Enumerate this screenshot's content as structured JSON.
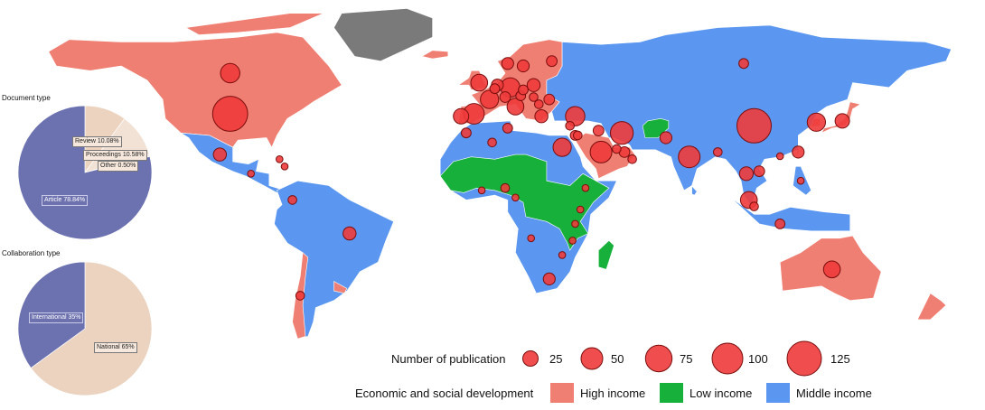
{
  "colors": {
    "high_income": "#f07f73",
    "low_income": "#16b03a",
    "middle_income": "#5b97f0",
    "no_data": "#7a7a7a",
    "bubble": "#ee3b3b",
    "article": "#6c72b0",
    "review": "#ebd3c0",
    "proceedings": "#f2e1d5",
    "other": "#f7ece4",
    "international": "#6c72b0",
    "national": "#ebd3c0"
  },
  "document_type": {
    "title": "Document type",
    "slices": [
      {
        "label": "Review 10.08%",
        "value": 10.08,
        "key": "review"
      },
      {
        "label": "Proceedings 10.58%",
        "value": 10.58,
        "key": "proceedings"
      },
      {
        "label": "Other 0.50%",
        "value": 0.5,
        "key": "other"
      },
      {
        "label": "Article 78.84%",
        "value": 78.84,
        "key": "article"
      }
    ]
  },
  "collaboration_type": {
    "title": "Collaboration type",
    "slices": [
      {
        "label": "National 65%",
        "value": 65,
        "key": "national"
      },
      {
        "label": "International 35%",
        "value": 35,
        "key": "international"
      }
    ]
  },
  "legend": {
    "publication_title": "Number of publication",
    "sizes": [
      {
        "label": "25",
        "value": 25
      },
      {
        "label": "50",
        "value": 50
      },
      {
        "label": "75",
        "value": 75
      },
      {
        "label": "100",
        "value": 100
      },
      {
        "label": "125",
        "value": 125
      }
    ],
    "development_title": "Economic and social development",
    "categories": [
      {
        "label": "High income",
        "key": "high_income"
      },
      {
        "label": "Low income",
        "key": "low_income"
      },
      {
        "label": "Middle income",
        "key": "middle_income"
      }
    ]
  },
  "bubbles": [
    {
      "name": "usa",
      "lon": -98,
      "lat": 40,
      "value": 130
    },
    {
      "name": "canada",
      "lon": -98,
      "lat": 57,
      "value": 40
    },
    {
      "name": "mexico",
      "lon": -102,
      "lat": 23,
      "value": 18
    },
    {
      "name": "guatemala",
      "lon": -90,
      "lat": 15,
      "value": 5
    },
    {
      "name": "cuba",
      "lon": -79,
      "lat": 21,
      "value": 5
    },
    {
      "name": "jamaica",
      "lon": -77,
      "lat": 18,
      "value": 5
    },
    {
      "name": "colombia",
      "lon": -74,
      "lat": 4,
      "value": 8
    },
    {
      "name": "brazil",
      "lon": -52,
      "lat": -10,
      "value": 18
    },
    {
      "name": "chile",
      "lon": -71,
      "lat": -36,
      "value": 8
    },
    {
      "name": "uk",
      "lon": -2,
      "lat": 53,
      "value": 30
    },
    {
      "name": "spain",
      "lon": -4,
      "lat": 40,
      "value": 45
    },
    {
      "name": "portugal",
      "lon": -9,
      "lat": 39,
      "value": 25
    },
    {
      "name": "france",
      "lon": 2,
      "lat": 46,
      "value": 35
    },
    {
      "name": "germany",
      "lon": 10,
      "lat": 51,
      "value": 40
    },
    {
      "name": "italy",
      "lon": 12,
      "lat": 43,
      "value": 30
    },
    {
      "name": "norway",
      "lon": 9,
      "lat": 61,
      "value": 15
    },
    {
      "name": "sweden",
      "lon": 15,
      "lat": 60,
      "value": 15
    },
    {
      "name": "finland",
      "lon": 26,
      "lat": 62,
      "value": 12
    },
    {
      "name": "netherlands",
      "lon": 5,
      "lat": 52,
      "value": 15
    },
    {
      "name": "belgium",
      "lon": 4,
      "lat": 50.5,
      "value": 10
    },
    {
      "name": "switzerland",
      "lon": 8,
      "lat": 47,
      "value": 12
    },
    {
      "name": "poland",
      "lon": 19,
      "lat": 52,
      "value": 18
    },
    {
      "name": "austria",
      "lon": 14,
      "lat": 47.5,
      "value": 10
    },
    {
      "name": "czech",
      "lon": 15,
      "lat": 50,
      "value": 10
    },
    {
      "name": "greece",
      "lon": 22,
      "lat": 39,
      "value": 18
    },
    {
      "name": "romania",
      "lon": 25,
      "lat": 46,
      "value": 12
    },
    {
      "name": "hungary",
      "lon": 19,
      "lat": 47,
      "value": 8
    },
    {
      "name": "serbia",
      "lon": 21,
      "lat": 44,
      "value": 8
    },
    {
      "name": "turkey",
      "lon": 35,
      "lat": 39,
      "value": 40
    },
    {
      "name": "cyprus",
      "lon": 33,
      "lat": 35,
      "value": 8
    },
    {
      "name": "israel",
      "lon": 35,
      "lat": 31,
      "value": 10
    },
    {
      "name": "egypt",
      "lon": 30,
      "lat": 26,
      "value": 35
    },
    {
      "name": "saudi",
      "lon": 45,
      "lat": 24,
      "value": 50
    },
    {
      "name": "iran",
      "lon": 53,
      "lat": 32,
      "value": 55
    },
    {
      "name": "iraq",
      "lon": 44,
      "lat": 33,
      "value": 12
    },
    {
      "name": "jordan",
      "lon": 36,
      "lat": 31,
      "value": 8
    },
    {
      "name": "uae",
      "lon": 54,
      "lat": 24,
      "value": 12
    },
    {
      "name": "qatar",
      "lon": 51,
      "lat": 25.3,
      "value": 8
    },
    {
      "name": "oman",
      "lon": 57,
      "lat": 21,
      "value": 8
    },
    {
      "name": "morocco",
      "lon": -7,
      "lat": 32,
      "value": 10
    },
    {
      "name": "algeria",
      "lon": 3,
      "lat": 28,
      "value": 8
    },
    {
      "name": "tunisia",
      "lon": 9,
      "lat": 34,
      "value": 10
    },
    {
      "name": "pakistan",
      "lon": 70,
      "lat": 30,
      "value": 15
    },
    {
      "name": "india",
      "lon": 79,
      "lat": 22,
      "value": 50
    },
    {
      "name": "bangladesh",
      "lon": 90,
      "lat": 24,
      "value": 8
    },
    {
      "name": "china",
      "lon": 104,
      "lat": 35,
      "value": 125
    },
    {
      "name": "south_korea",
      "lon": 128,
      "lat": 36.5,
      "value": 35
    },
    {
      "name": "japan",
      "lon": 138,
      "lat": 37,
      "value": 22
    },
    {
      "name": "taiwan",
      "lon": 121,
      "lat": 24,
      "value": 15
    },
    {
      "name": "hong_kong",
      "lon": 114,
      "lat": 22.3,
      "value": 5
    },
    {
      "name": "vietnam",
      "lon": 106,
      "lat": 16,
      "value": 12
    },
    {
      "name": "thailand",
      "lon": 101,
      "lat": 15,
      "value": 20
    },
    {
      "name": "malaysia",
      "lon": 102,
      "lat": 4,
      "value": 30
    },
    {
      "name": "singapore",
      "lon": 104,
      "lat": 1.3,
      "value": 8
    },
    {
      "name": "indonesia",
      "lon": 114,
      "lat": -6,
      "value": 10
    },
    {
      "name": "philippines",
      "lon": 122,
      "lat": 12,
      "value": 5
    },
    {
      "name": "australia",
      "lon": 134,
      "lat": -25,
      "value": 30
    },
    {
      "name": "russia",
      "lon": 100,
      "lat": 61,
      "value": 10
    },
    {
      "name": "nigeria",
      "lon": 8,
      "lat": 9,
      "value": 8
    },
    {
      "name": "ghana",
      "lon": -1,
      "lat": 8,
      "value": 5
    },
    {
      "name": "ethiopia",
      "lon": 39,
      "lat": 9,
      "value": 5
    },
    {
      "name": "kenya",
      "lon": 37,
      "lat": 0,
      "value": 5
    },
    {
      "name": "tanzania",
      "lon": 35,
      "lat": -6,
      "value": 5
    },
    {
      "name": "south_africa",
      "lon": 25,
      "lat": -29,
      "value": 15
    },
    {
      "name": "zimbabwe",
      "lon": 30,
      "lat": -19,
      "value": 5
    },
    {
      "name": "malawi",
      "lon": 34,
      "lat": -13,
      "value": 5
    },
    {
      "name": "angola",
      "lon": 18,
      "lat": -12,
      "value": 5
    },
    {
      "name": "cameroon",
      "lon": 12,
      "lat": 5,
      "value": 5
    }
  ]
}
